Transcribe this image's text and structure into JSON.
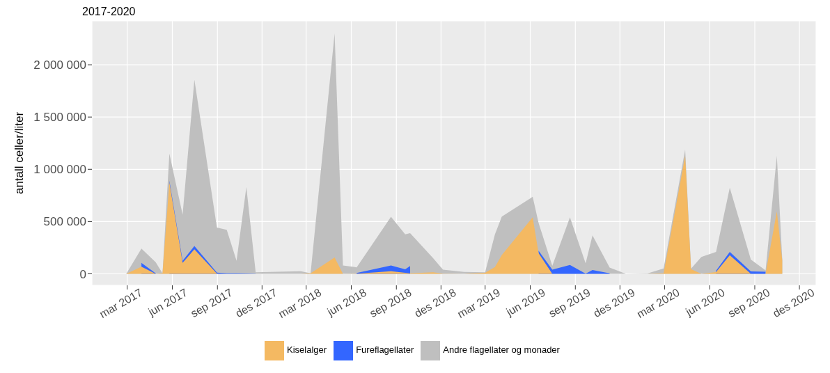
{
  "chart_data": {
    "type": "area",
    "stacked": true,
    "title": "2017-2020",
    "ylabel": "antall celler/liter",
    "x": [
      "2017-02-27",
      "2017-03-30",
      "2017-04-28",
      "2017-05-12",
      "2017-05-26",
      "2017-06-22",
      "2017-07-16",
      "2017-08-31",
      "2017-09-20",
      "2017-10-10",
      "2017-10-30",
      "2017-11-18",
      "2018-02-18",
      "2018-03-10",
      "2018-04-28",
      "2018-05-15",
      "2018-06-12",
      "2018-08-21",
      "2018-09-19",
      "2018-09-29",
      "2018-11-15",
      "2018-12-05",
      "2019-01-17",
      "2019-03-01",
      "2019-03-21",
      "2019-04-04",
      "2019-06-06",
      "2019-06-18",
      "2019-07-16",
      "2019-08-21",
      "2019-09-22",
      "2019-10-06",
      "2019-11-10",
      "2019-12-13",
      "2020-01-26",
      "2020-02-28",
      "2020-04-12",
      "2020-04-24",
      "2020-05-15",
      "2020-06-14",
      "2020-07-12",
      "2020-08-24",
      "2020-09-23",
      "2020-10-16",
      "2020-10-27"
    ],
    "series": [
      {
        "name": "Kiselalger",
        "color": "#f4b962",
        "values": [
          0,
          68000,
          0,
          5000,
          876000,
          105000,
          235000,
          2000,
          0,
          0,
          0,
          0,
          0,
          5000,
          157000,
          0,
          2000,
          25000,
          10000,
          5000,
          15000,
          2000,
          0,
          10000,
          64000,
          180000,
          541000,
          198000,
          0,
          0,
          0,
          0,
          0,
          0,
          0,
          5000,
          1129000,
          45000,
          0,
          17000,
          178000,
          0,
          0,
          597000,
          130000
        ]
      },
      {
        "name": "Fureflagellater",
        "color": "#3366ff",
        "values": [
          null,
          37000,
          5000,
          null,
          14000,
          19000,
          31000,
          10000,
          5000,
          5000,
          3000,
          2000,
          null,
          null,
          null,
          null,
          6000,
          55000,
          33000,
          70000,
          null,
          null,
          null,
          null,
          null,
          null,
          null,
          24000,
          40000,
          84000,
          2000,
          36000,
          5000,
          null,
          null,
          null,
          null,
          null,
          null,
          13000,
          32000,
          23000,
          20000,
          null,
          null
        ]
      },
      {
        "name": "Andre flagellater og monader",
        "color": "#bfbfbf",
        "values": [
          0,
          136000,
          106000,
          0,
          260000,
          442000,
          1592000,
          431000,
          416000,
          119000,
          827000,
          13000,
          25000,
          0,
          2143000,
          80000,
          54000,
          465000,
          335000,
          315000,
          134000,
          38000,
          18000,
          5000,
          314000,
          368000,
          196000,
          266000,
          37000,
          457000,
          98000,
          331000,
          55000,
          0,
          3000,
          47000,
          60000,
          5000,
          161000,
          180000,
          613000,
          113000,
          13000,
          532000,
          10000
        ]
      }
    ],
    "xlim": [
      "2016-12-19",
      "2021-01-04"
    ],
    "xticks": [
      {
        "value": "2017-03-01",
        "label": "mar 2017"
      },
      {
        "value": "2017-06-01",
        "label": "jun 2017"
      },
      {
        "value": "2017-09-01",
        "label": "sep 2017"
      },
      {
        "value": "2017-12-01",
        "label": "des 2017"
      },
      {
        "value": "2018-03-01",
        "label": "mar 2018"
      },
      {
        "value": "2018-06-01",
        "label": "jun 2018"
      },
      {
        "value": "2018-09-01",
        "label": "sep 2018"
      },
      {
        "value": "2018-12-01",
        "label": "des 2018"
      },
      {
        "value": "2019-03-01",
        "label": "mar 2019"
      },
      {
        "value": "2019-06-01",
        "label": "jun 2019"
      },
      {
        "value": "2019-09-01",
        "label": "sep 2019"
      },
      {
        "value": "2019-12-01",
        "label": "des 2019"
      },
      {
        "value": "2020-03-01",
        "label": "mar 2020"
      },
      {
        "value": "2020-06-01",
        "label": "jun 2020"
      },
      {
        "value": "2020-09-01",
        "label": "sep 2020"
      },
      {
        "value": "2020-12-01",
        "label": "des 2020"
      }
    ],
    "ylim": [
      -110000,
      2420000
    ],
    "yticks": [
      {
        "value": 0,
        "label": "0"
      },
      {
        "value": 500000,
        "label": "500 000"
      },
      {
        "value": 1000000,
        "label": "1 000 000"
      },
      {
        "value": 1500000,
        "label": "1 500 000"
      },
      {
        "value": 2000000,
        "label": "2 000 000"
      }
    ],
    "grid": true,
    "legend": "bottom"
  }
}
